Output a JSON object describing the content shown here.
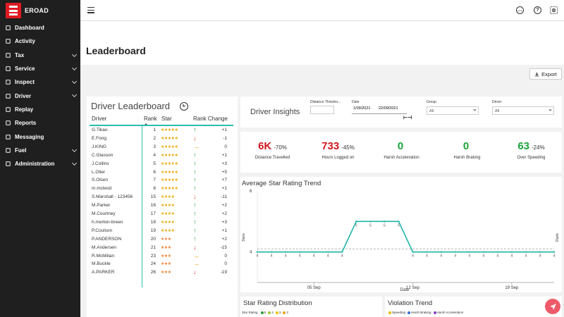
{
  "app": {
    "logo_text": "EROAD"
  },
  "sidebar": {
    "items": [
      {
        "label": "Dashboard",
        "icon": "dashboard-icon",
        "chevron": false
      },
      {
        "label": "Activity",
        "icon": "activity-icon",
        "chevron": false
      },
      {
        "label": "Tax",
        "icon": "tax-icon",
        "chevron": true
      },
      {
        "label": "Service",
        "icon": "service-icon",
        "chevron": true
      },
      {
        "label": "Inspect",
        "icon": "inspect-icon",
        "chevron": true
      },
      {
        "label": "Driver",
        "icon": "driver-icon",
        "chevron": true
      },
      {
        "label": "Replay",
        "icon": "replay-icon",
        "chevron": false
      },
      {
        "label": "Reports",
        "icon": "reports-icon",
        "chevron": false
      },
      {
        "label": "Messaging",
        "icon": "messaging-icon",
        "chevron": false
      },
      {
        "label": "Fuel",
        "icon": "fuel-icon",
        "chevron": true
      },
      {
        "label": "Administration",
        "icon": "administration-icon",
        "chevron": true
      }
    ]
  },
  "header": {
    "title": "Leaderboard",
    "export_label": "Export"
  },
  "leaderboard": {
    "title": "Driver Leaderboard",
    "col_driver": "Driver",
    "col_rank": "Rank",
    "col_star": "Star",
    "col_change": "Rank Change",
    "rows": [
      {
        "driver": "G.Tikao",
        "rank": "1",
        "stars": 5,
        "trend": "up",
        "change": "+1"
      },
      {
        "driver": "E.Fong",
        "rank": "2",
        "stars": 5,
        "trend": "down",
        "change": "-1"
      },
      {
        "driver": "J.KING",
        "rank": "3",
        "stars": 5,
        "trend": "same",
        "change": "0"
      },
      {
        "driver": "C.Glasson",
        "rank": "4",
        "stars": 5,
        "trend": "up",
        "change": "+1"
      },
      {
        "driver": "J.Collins",
        "rank": "5",
        "stars": 5,
        "trend": "up",
        "change": "+3"
      },
      {
        "driver": "L.Olier",
        "rank": "6",
        "stars": 5,
        "trend": "up",
        "change": "+5"
      },
      {
        "driver": "S.Olsen",
        "rank": "7",
        "stars": 5,
        "trend": "up",
        "change": "+7"
      },
      {
        "driver": "m.mcleod",
        "rank": "8",
        "stars": 5,
        "trend": "up",
        "change": "+1"
      },
      {
        "driver": "S.Marshall - 123456",
        "rank": "15",
        "stars": 4,
        "trend": "down",
        "change": "-11"
      },
      {
        "driver": "M.Parker",
        "rank": "16",
        "stars": 4,
        "trend": "up",
        "change": "+2"
      },
      {
        "driver": "M.Courtney",
        "rank": "17",
        "stars": 4,
        "trend": "up",
        "change": "+2"
      },
      {
        "driver": "h.merton-breen",
        "rank": "18",
        "stars": 4,
        "trend": "up",
        "change": "+3"
      },
      {
        "driver": "P.Coulson",
        "rank": "19",
        "stars": 4,
        "trend": "up",
        "change": "+1"
      },
      {
        "driver": "P.ANDERSON",
        "rank": "20",
        "stars": 3,
        "trend": "up",
        "change": "+2"
      },
      {
        "driver": "M.Andersen",
        "rank": "21",
        "stars": 3,
        "trend": "down",
        "change": "-15"
      },
      {
        "driver": "R.McMillan",
        "rank": "23",
        "stars": 3,
        "trend": "same",
        "change": "0"
      },
      {
        "driver": "M.Buckle",
        "rank": "24",
        "stars": 3,
        "trend": "same",
        "change": "0"
      },
      {
        "driver": "A.PARKER",
        "rank": "26",
        "stars": 3,
        "trend": "down",
        "change": "-19"
      }
    ]
  },
  "insights": {
    "title": "Driver Insights",
    "distance_label": "Distance Thresho...",
    "distance_value": "",
    "date_label": "Date",
    "date_from": "1/09/2021",
    "date_to": "22/09/2021",
    "group_label": "Group",
    "group_value": "All",
    "driver_label": "Driver",
    "driver_value": "All"
  },
  "metrics": [
    {
      "value": "6K",
      "pct": "-70%",
      "label": "Distance Travelled",
      "color": "#d0171f"
    },
    {
      "value": "733",
      "pct": "-45%",
      "label": "Hours Logged on",
      "color": "#d0171f"
    },
    {
      "value": "0",
      "pct": "",
      "label": "Harsh Acceleration",
      "color": "#1aa33a"
    },
    {
      "value": "0",
      "pct": "",
      "label": "Harsh Braking",
      "color": "#1aa33a"
    },
    {
      "value": "63",
      "pct": "-24%",
      "label": "Over Speeding",
      "color": "#1aa33a"
    }
  ],
  "trend": {
    "title": "Average Star Rating Trend",
    "ylabel": "Stars",
    "y2label": "Rank",
    "xlabel": "Date",
    "y_ticks": [
      "4",
      "6"
    ],
    "x_ticks": [
      "05 Sep",
      "12 Sep",
      "19 Sep"
    ],
    "point_labels": [
      "4",
      "4",
      "4",
      "4",
      "4",
      "4",
      "4",
      "5",
      "5",
      "5",
      "5",
      "4",
      "4",
      "4",
      "4",
      "4",
      "4",
      "4",
      "4",
      "4",
      "4",
      "4"
    ]
  },
  "chart_data": {
    "type": "line",
    "title": "Average Star Rating Trend",
    "xlabel": "Date",
    "ylabel": "Stars",
    "x": [
      "01 Sep",
      "02 Sep",
      "03 Sep",
      "04 Sep",
      "05 Sep",
      "06 Sep",
      "07 Sep",
      "08 Sep",
      "09 Sep",
      "10 Sep",
      "11 Sep",
      "12 Sep",
      "13 Sep",
      "14 Sep",
      "15 Sep",
      "16 Sep",
      "17 Sep",
      "18 Sep",
      "19 Sep",
      "20 Sep",
      "21 Sep",
      "22 Sep"
    ],
    "series": [
      {
        "values": [
          4,
          4,
          4,
          4,
          4,
          4,
          4,
          5,
          5,
          5,
          5,
          4,
          4,
          4,
          4,
          4,
          4,
          4,
          4,
          4,
          4,
          4
        ],
        "color": "#1fb5a8"
      }
    ],
    "ylim": [
      3,
      6
    ]
  },
  "star_dist": {
    "title": "Star Rating Distribution",
    "legend_label": "Star Rating",
    "legend": [
      {
        "label": "5",
        "color": "#2e9e3a"
      },
      {
        "label": "4",
        "color": "#9acd32"
      },
      {
        "label": "3",
        "color": "#f2c500"
      },
      {
        "label": "2",
        "color": "#f0a000"
      }
    ]
  },
  "violation": {
    "title": "Violation Trend",
    "legend": [
      {
        "label": "Speeding",
        "color": "#e6b800"
      },
      {
        "label": "Harsh Braking",
        "color": "#3a6fd8"
      },
      {
        "label": "Harsh Acceleration",
        "color": "#8a3fc4"
      }
    ]
  }
}
